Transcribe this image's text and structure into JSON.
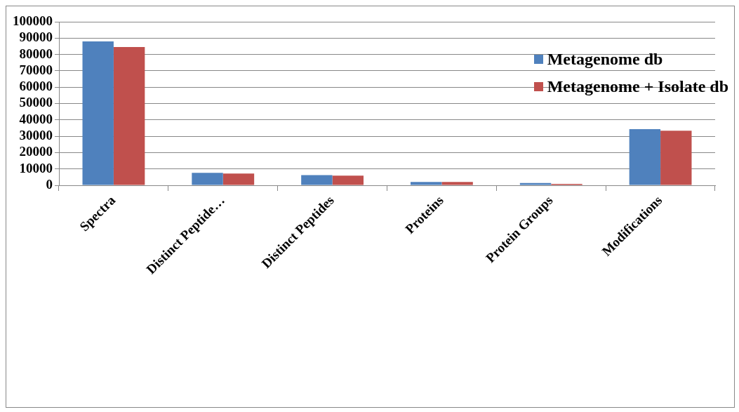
{
  "chart_data": {
    "type": "bar",
    "categories": [
      "Spectra",
      "Distinct Peptide…",
      "Distinct Peptides",
      "Proteins",
      "Protein Groups",
      "Modifications"
    ],
    "series": [
      {
        "name": "Metagenome db",
        "color": "#4f81bd",
        "values": [
          88000,
          7650,
          6250,
          2000,
          1400,
          34300
        ]
      },
      {
        "name": "Metagenome + Isolate db",
        "color": "#c0504d",
        "values": [
          84500,
          7200,
          5900,
          2000,
          900,
          33400
        ]
      }
    ],
    "ylim": [
      0,
      100000
    ],
    "yticks": [
      0,
      10000,
      20000,
      30000,
      40000,
      50000,
      60000,
      70000,
      80000,
      90000,
      100000
    ],
    "grid": "y",
    "legend": "top right"
  }
}
